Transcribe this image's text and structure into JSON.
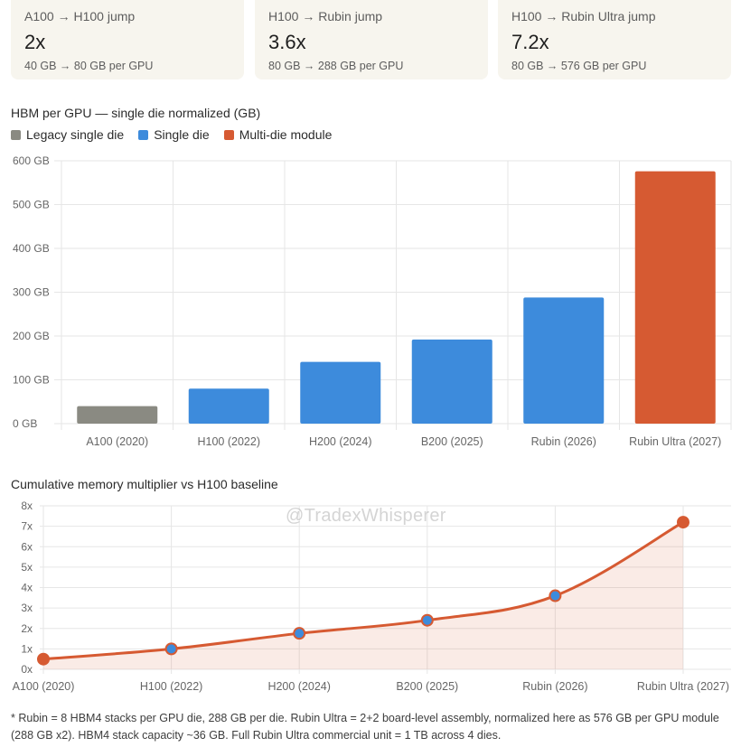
{
  "cards": [
    {
      "title": "A100 → H100 jump",
      "value": "2x",
      "sub": "40 GB → 80 GB per GPU"
    },
    {
      "title": "H100 → Rubin jump",
      "value": "3.6x",
      "sub": "80 GB → 288 GB per GPU"
    },
    {
      "title": "H100 → Rubin Ultra jump",
      "value": "7.2x",
      "sub": "80 GB → 576 GB per GPU"
    }
  ],
  "legend": [
    {
      "label": "Legacy single die",
      "color": "#8a8a82"
    },
    {
      "label": "Single die",
      "color": "#3d8bdc"
    },
    {
      "label": "Multi-die module",
      "color": "#d65a32"
    }
  ],
  "watermark": "@TradexWhisperer",
  "footnote": "* Rubin = 8 HBM4 stacks per GPU die, 288 GB per die. Rubin Ultra = 2+2 board-level assembly, normalized here as 576 GB per GPU module (288 GB x2). HBM4 stack capacity ~36 GB. Full Rubin Ultra commercial unit = 1 TB across 4 dies.",
  "chart_data": [
    {
      "type": "bar",
      "title": "HBM per GPU — single die normalized (GB)",
      "categories": [
        "A100 (2020)",
        "H100 (2022)",
        "H200 (2024)",
        "B200 (2025)",
        "Rubin (2026)",
        "Rubin Ultra (2027)"
      ],
      "values": [
        40,
        80,
        141,
        192,
        288,
        576
      ],
      "groups": [
        "Legacy single die",
        "Single die",
        "Single die",
        "Single die",
        "Single die",
        "Multi-die module"
      ],
      "colors": [
        "#8a8a82",
        "#3d8bdc",
        "#3d8bdc",
        "#3d8bdc",
        "#3d8bdc",
        "#d65a32"
      ],
      "ylim": [
        0,
        600
      ],
      "yticks": [
        0,
        100,
        200,
        300,
        400,
        500,
        600
      ],
      "ytick_labels": [
        "0 GB",
        "100 GB",
        "200 GB",
        "300 GB",
        "400 GB",
        "500 GB",
        "600 GB"
      ],
      "grid": true
    },
    {
      "type": "area",
      "title": "Cumulative memory multiplier vs H100 baseline",
      "categories": [
        "A100 (2020)",
        "H100 (2022)",
        "H200 (2024)",
        "B200 (2025)",
        "Rubin (2026)",
        "Rubin Ultra (2027)"
      ],
      "values": [
        0.5,
        1.0,
        1.76,
        2.4,
        3.6,
        7.2
      ],
      "ylim": [
        0,
        8
      ],
      "yticks": [
        0,
        1,
        2,
        3,
        4,
        5,
        6,
        7,
        8
      ],
      "ytick_labels": [
        "0x",
        "1x",
        "2x",
        "3x",
        "4x",
        "5x",
        "6x",
        "7x",
        "8x"
      ],
      "line_color": "#d65a32",
      "grid": true
    }
  ]
}
